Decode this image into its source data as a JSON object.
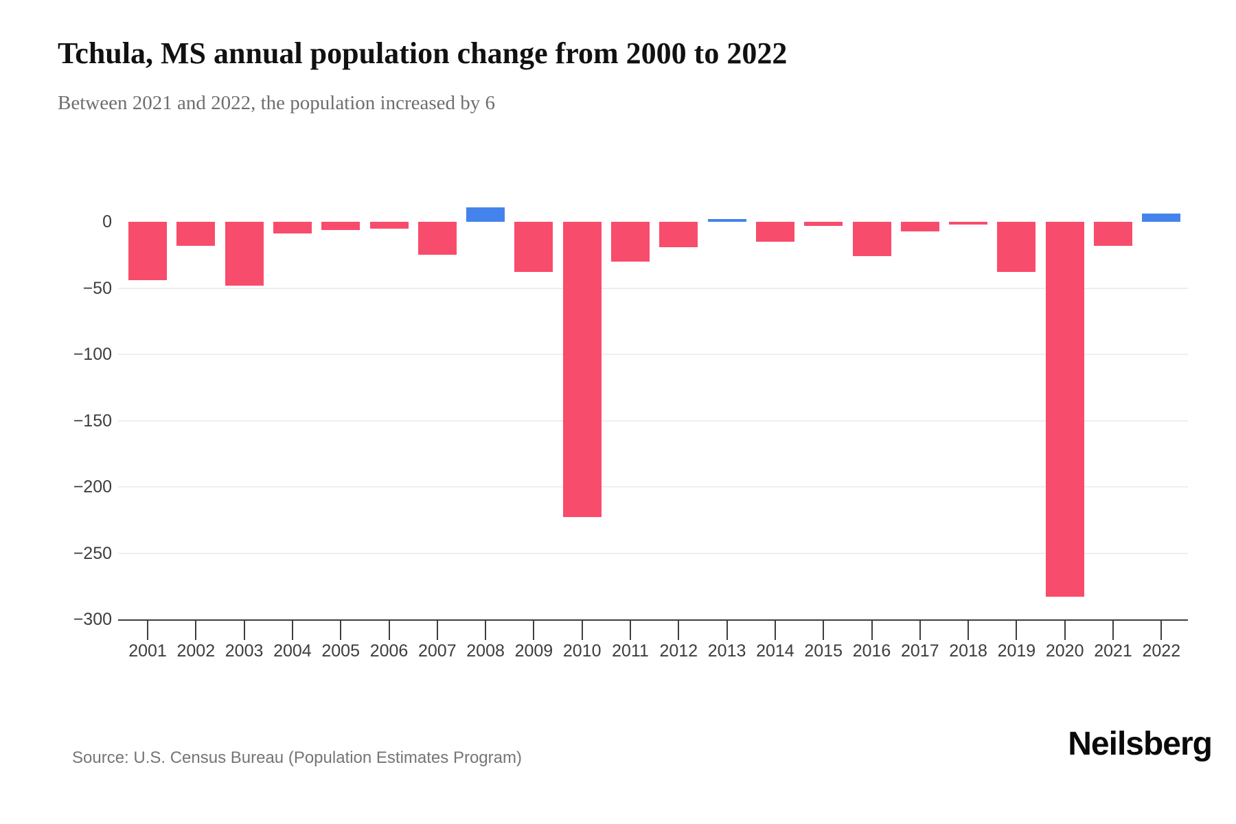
{
  "header": {
    "title": "Tchula, MS annual population change from 2000 to 2022",
    "subtitle": "Between 2021 and 2022, the population increased by 6"
  },
  "footer": {
    "source": "Source: U.S. Census Bureau (Population Estimates Program)",
    "brand": "Neilsberg"
  },
  "chart_data": {
    "type": "bar",
    "title": "Tchula, MS annual population change from 2000 to 2022",
    "subtitle": "Between 2021 and 2022, the population increased by 6",
    "xlabel": "",
    "ylabel": "",
    "categories": [
      "2001",
      "2002",
      "2003",
      "2004",
      "2005",
      "2006",
      "2007",
      "2008",
      "2009",
      "2010",
      "2011",
      "2012",
      "2013",
      "2014",
      "2015",
      "2016",
      "2017",
      "2018",
      "2019",
      "2020",
      "2021",
      "2022"
    ],
    "values": [
      -44,
      -18,
      -48,
      -9,
      -6,
      -5,
      -25,
      11,
      -38,
      -223,
      -30,
      -19,
      2,
      -15,
      -3,
      -26,
      -7,
      -2,
      -38,
      -283,
      -18,
      6
    ],
    "ylim": [
      -300,
      25
    ],
    "yticks": [
      0,
      -50,
      -100,
      -150,
      -200,
      -250,
      -300
    ],
    "ytick_labels": [
      "0",
      "−50",
      "−100",
      "−150",
      "−200",
      "−250",
      "−300"
    ],
    "grid": "horizontal",
    "legend": "none",
    "decrease_color": "#f84c6c",
    "increase_color": "#4483eb",
    "gridline_color": "#eeeeee",
    "axis_color": "#3d3d3d"
  }
}
